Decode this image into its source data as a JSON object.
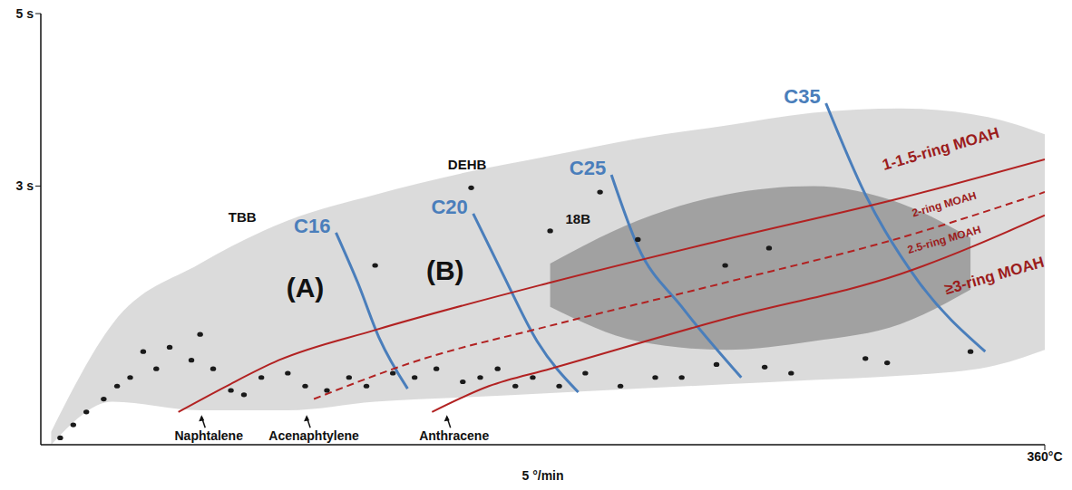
{
  "chart_data": {
    "type": "scatter",
    "x_label": "5 °/min",
    "xlim": [
      60,
      360
    ],
    "xticks": [
      {
        "value": 360,
        "label": "360°C"
      }
    ],
    "ylim": [
      0,
      5
    ],
    "yticks": [
      {
        "value": 3,
        "label": "3 s"
      },
      {
        "value": 5,
        "label": "5 s"
      }
    ],
    "grid": false,
    "envelope": {
      "color": "#cfcfcf",
      "x": [
        63.1,
        81.4,
        107.6,
        133.8,
        159.9,
        186.1,
        212.2,
        238.4,
        264.5,
        290.7,
        316.9,
        343.0,
        360
      ],
      "lower": [
        0.0,
        0.5,
        0.4,
        0.4,
        0.5,
        0.55,
        0.6,
        0.65,
        0.7,
        0.75,
        0.8,
        0.9,
        1.1
      ],
      "upper": [
        0.15,
        1.4,
        2.1,
        2.6,
        2.9,
        3.15,
        3.35,
        3.55,
        3.7,
        3.85,
        3.9,
        3.8,
        3.6
      ]
    },
    "core": {
      "color": "#5a5a5a",
      "x": [
        212.2,
        238.4,
        264.5,
        290.7,
        316.9,
        337.8
      ],
      "lower": [
        1.6,
        1.2,
        1.1,
        1.2,
        1.4,
        1.8
      ],
      "upper": [
        2.1,
        2.6,
        2.9,
        3.0,
        2.8,
        2.4
      ]
    },
    "peaks": {
      "color": "#1a1a1a",
      "x": [
        65.8,
        69.7,
        73.6,
        78.8,
        82.8,
        86.7,
        90.6,
        94.5,
        98.5,
        105.0,
        111.5,
        116.8,
        120.7,
        125.9,
        133.8,
        139.0,
        145.5,
        152.1,
        157.3,
        165.2,
        171.7,
        178.2,
        186.1,
        191.3,
        196.5,
        201.8,
        207.0,
        214.9,
        222.7,
        233.2,
        243.6,
        251.5,
        261.9,
        276.3,
        284.2,
        306.4,
        312.9,
        337.8,
        264.5,
        277.6,
        212.2,
        238.4,
        159.9,
        107.6,
        188.6,
        227.1
      ],
      "y": [
        0.08,
        0.23,
        0.38,
        0.53,
        0.68,
        0.78,
        1.08,
        0.88,
        1.13,
        0.98,
        0.88,
        0.63,
        0.58,
        0.78,
        0.83,
        0.68,
        0.63,
        0.78,
        0.68,
        0.83,
        0.78,
        0.88,
        0.73,
        0.78,
        0.88,
        0.68,
        0.78,
        0.68,
        0.83,
        0.68,
        0.78,
        0.78,
        0.93,
        0.9,
        0.83,
        1.0,
        0.95,
        1.08,
        2.08,
        2.28,
        2.48,
        2.38,
        2.08,
        1.28,
        2.98,
        2.93
      ]
    },
    "series": [
      {
        "name": "C16",
        "type": "line",
        "color": "#4a7ebb",
        "line_style": "solid",
        "x": [
          148.2,
          154.7,
          161.2,
          169.6
        ],
        "values": [
          2.46,
          1.88,
          1.23,
          0.65
        ]
      },
      {
        "name": "C20",
        "type": "line",
        "color": "#4a7ebb",
        "line_style": "solid",
        "x": [
          189.2,
          197.8,
          208.3,
          220.6
        ],
        "values": [
          2.68,
          2.0,
          1.2,
          0.61
        ]
      },
      {
        "name": "C25",
        "type": "line",
        "color": "#4a7ebb",
        "line_style": "solid",
        "x": [
          230.5,
          238.4,
          251.5,
          269.3
        ],
        "values": [
          3.13,
          2.3,
          1.6,
          0.78
        ]
      },
      {
        "name": "C35",
        "type": "line",
        "color": "#4a7ebb",
        "line_style": "solid",
        "x": [
          294.6,
          306.4,
          322.1,
          342.2
        ],
        "values": [
          3.96,
          2.9,
          1.9,
          1.08
        ]
      },
      {
        "type": "line",
        "color": "#b22222",
        "line_style": "solid",
        "x": [
          101.1,
          115.5,
          131.1,
          159.9,
          212.2,
          264.5,
          316.9,
          360
        ],
        "values": [
          0.38,
          0.68,
          0.98,
          1.33,
          1.88,
          2.38,
          2.86,
          3.31
        ]
      },
      {
        "type": "line",
        "color": "#b22222",
        "line_style": "dashed",
        "x": [
          141.6,
          173.0,
          212.2,
          264.5,
          316.9,
          360
        ],
        "values": [
          0.53,
          0.98,
          1.38,
          1.88,
          2.4,
          2.93
        ]
      },
      {
        "type": "line",
        "color": "#b22222",
        "line_style": "solid",
        "x": [
          176.9,
          193.9,
          212.2,
          264.5,
          316.9,
          360
        ],
        "values": [
          0.38,
          0.68,
          0.88,
          1.46,
          1.98,
          2.66
        ]
      }
    ],
    "annotations": [
      {
        "text": "TBB",
        "x": 120.2,
        "y": 2.63
      },
      {
        "text": "DEHB",
        "x": 187.4,
        "y": 3.23
      },
      {
        "text": "18B",
        "x": 220.5,
        "y": 2.6
      }
    ],
    "panels": [
      {
        "text": "(A)",
        "x": 139.0,
        "y": 1.8
      },
      {
        "text": "(B)",
        "x": 180.8,
        "y": 2.0
      }
    ],
    "regions": [
      {
        "text": "1-1.5-ring MOAH",
        "x": 329,
        "y": 3.42,
        "color": "#9b1c1c"
      },
      {
        "text": "2-ring MOAH",
        "x": 330,
        "y": 2.78,
        "color": "#9b1c1c"
      },
      {
        "text": "2.5-ring MOAH",
        "x": 330,
        "y": 2.37,
        "color": "#9b1c1c"
      },
      {
        "text": "≥3-ring MOAH",
        "x": 345,
        "y": 1.95,
        "color": "#9b1c1c"
      }
    ],
    "compounds": [
      {
        "text": "Naphtalene",
        "x": 110.2,
        "y": 0.05
      },
      {
        "text": "Acenaphtylene",
        "x": 141.6,
        "y": 0.05
      },
      {
        "text": "Anthracene",
        "x": 183.5,
        "y": 0.05
      }
    ]
  }
}
